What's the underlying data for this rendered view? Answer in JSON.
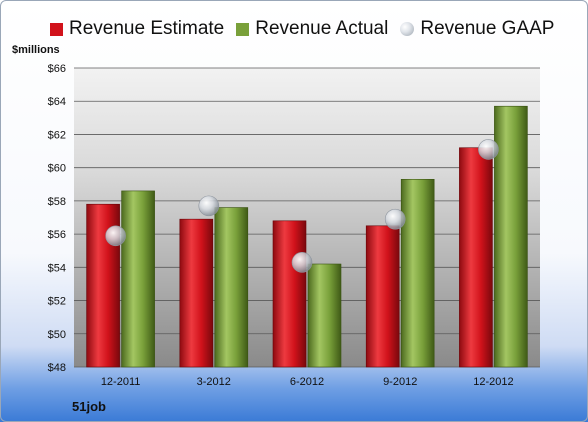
{
  "chart_data": {
    "type": "bar",
    "categories": [
      "12-2011",
      "3-2012",
      "6-2012",
      "9-2012",
      "12-2012"
    ],
    "series": [
      {
        "name": "Revenue Estimate",
        "kind": "bar",
        "color": "#d1121b",
        "values": [
          57.8,
          56.9,
          56.8,
          56.5,
          61.2
        ]
      },
      {
        "name": "Revenue Actual",
        "kind": "bar",
        "color": "#79a03a",
        "values": [
          58.6,
          57.6,
          54.2,
          59.3,
          63.7
        ]
      },
      {
        "name": "Revenue GAAP",
        "kind": "marker",
        "color": "#c8ccd2",
        "values": [
          55.9,
          57.7,
          54.3,
          56.9,
          61.1
        ]
      }
    ],
    "ylabel": "$millions",
    "ylim": [
      48,
      66
    ],
    "yticks": [
      48,
      50,
      52,
      54,
      56,
      58,
      60,
      62,
      64,
      66
    ],
    "ytick_labels": [
      "$48",
      "$50",
      "$52",
      "$54",
      "$56",
      "$58",
      "$60",
      "$62",
      "$64",
      "$66"
    ],
    "grid": true,
    "legend_position": "top",
    "company": "51job"
  }
}
